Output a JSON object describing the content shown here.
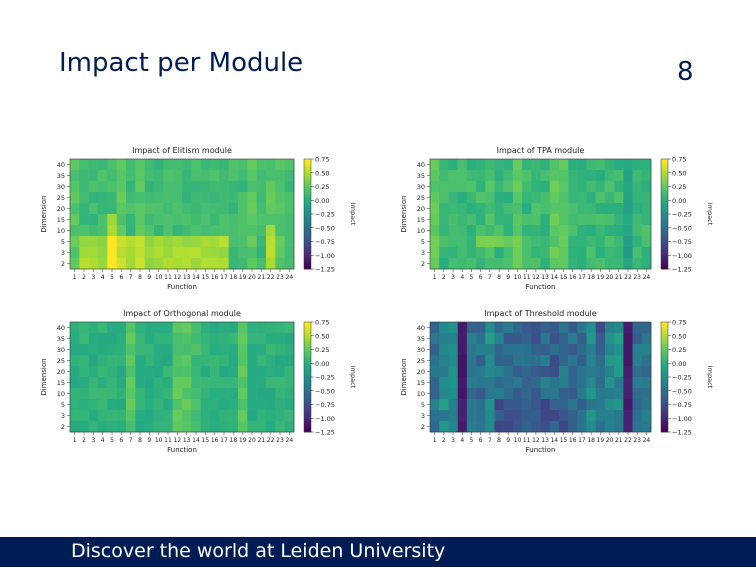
{
  "slide": {
    "title": "Impact per Module",
    "page_number": "8",
    "footer": "Discover the world at Leiden University"
  },
  "colors": {
    "navy": "#001c54",
    "colormap": "viridis"
  },
  "chart_data": [
    {
      "type": "heatmap",
      "title": "Impact of Elitism module",
      "xlabel": "Function",
      "ylabel": "Dimension",
      "colorbar_label": "Impact",
      "x_ticks": [
        "1",
        "2",
        "3",
        "4",
        "5",
        "6",
        "7",
        "8",
        "9",
        "10",
        "11",
        "12",
        "13",
        "14",
        "15",
        "16",
        "17",
        "18",
        "19",
        "20",
        "21",
        "22",
        "23",
        "24"
      ],
      "y_ticks": [
        "40",
        "35",
        "30",
        "25",
        "20",
        "15",
        "10",
        "5",
        "3",
        "2"
      ],
      "colorbar_ticks": [
        "0.75",
        "0.50",
        "0.25",
        "0.00",
        "−0.25",
        "−0.50",
        "−0.75",
        "−1.00",
        "−1.25"
      ],
      "clim": [
        -1.25,
        0.75
      ]
    },
    {
      "type": "heatmap",
      "title": "Impact of TPA module",
      "xlabel": "Function",
      "ylabel": "Dimension",
      "colorbar_label": "Impact",
      "x_ticks": [
        "1",
        "2",
        "3",
        "4",
        "5",
        "6",
        "7",
        "8",
        "9",
        "10",
        "11",
        "12",
        "13",
        "14",
        "15",
        "16",
        "17",
        "18",
        "19",
        "20",
        "21",
        "22",
        "23",
        "24"
      ],
      "y_ticks": [
        "40",
        "35",
        "30",
        "25",
        "20",
        "15",
        "10",
        "5",
        "3",
        "2"
      ],
      "colorbar_ticks": [
        "0.75",
        "0.50",
        "0.25",
        "0.00",
        "−0.25",
        "−0.50",
        "−0.75",
        "−1.00",
        "−1.25"
      ],
      "clim": [
        -1.25,
        0.75
      ]
    },
    {
      "type": "heatmap",
      "title": "Impact of Orthogonal module",
      "xlabel": "Function",
      "ylabel": "Dimension",
      "colorbar_label": "Impact",
      "x_ticks": [
        "1",
        "2",
        "3",
        "4",
        "5",
        "6",
        "7",
        "8",
        "9",
        "10",
        "11",
        "12",
        "13",
        "14",
        "15",
        "16",
        "17",
        "18",
        "19",
        "20",
        "21",
        "22",
        "23",
        "24"
      ],
      "y_ticks": [
        "40",
        "35",
        "30",
        "25",
        "20",
        "15",
        "10",
        "5",
        "3",
        "2"
      ],
      "colorbar_ticks": [
        "0.75",
        "0.50",
        "0.25",
        "0.00",
        "−0.25",
        "−0.50",
        "−0.75",
        "−1.00",
        "−1.25"
      ],
      "clim": [
        -1.25,
        0.75
      ]
    },
    {
      "type": "heatmap",
      "title": "Impact of Threshold module",
      "xlabel": "Function",
      "ylabel": "Dimension",
      "colorbar_label": "Impact",
      "x_ticks": [
        "1",
        "2",
        "3",
        "4",
        "5",
        "6",
        "7",
        "8",
        "9",
        "10",
        "11",
        "12",
        "13",
        "14",
        "15",
        "16",
        "17",
        "18",
        "19",
        "20",
        "21",
        "22",
        "23",
        "24"
      ],
      "y_ticks": [
        "40",
        "35",
        "30",
        "25",
        "20",
        "15",
        "10",
        "5",
        "3",
        "2"
      ],
      "colorbar_ticks": [
        "0.75",
        "0.50",
        "0.25",
        "0.00",
        "−0.25",
        "−0.50",
        "−0.75",
        "−1.00",
        "−1.25"
      ],
      "clim": [
        -1.25,
        0.75
      ]
    }
  ]
}
